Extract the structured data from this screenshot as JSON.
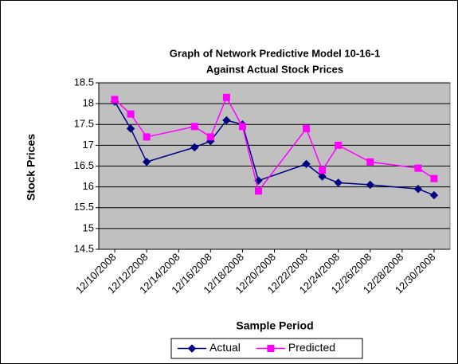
{
  "chart_data": {
    "type": "line",
    "title": [
      "Graph of Network Predictive Model 10-16-1",
      "Against Actual Stock Prices"
    ],
    "x_label": "Sample Period",
    "y_label": "Stock Prices",
    "x": [
      "12/10/2008",
      "12/11/2008",
      "12/12/2008",
      "12/15/2008",
      "12/16/2008",
      "12/17/2008",
      "12/18/2008",
      "12/19/2008",
      "12/22/2008",
      "12/23/2008",
      "12/24/2008",
      "12/26/2008",
      "12/29/2008",
      "12/30/2008"
    ],
    "series": [
      {
        "name": "Actual",
        "color": "#000080",
        "marker": "diamond",
        "values": [
          18.05,
          17.4,
          16.6,
          16.95,
          17.1,
          17.6,
          17.5,
          16.15,
          16.55,
          16.25,
          16.1,
          16.05,
          15.95,
          15.8
        ]
      },
      {
        "name": "Predicted",
        "color": "#ff00ff",
        "marker": "square",
        "values": [
          18.1,
          17.75,
          17.2,
          17.45,
          17.2,
          18.15,
          17.45,
          15.9,
          17.4,
          16.4,
          17.0,
          16.6,
          16.45,
          16.2
        ]
      }
    ],
    "xlim": [
      "12/9/2008",
      "12/31/2008"
    ],
    "xticks": [
      "12/10/2008",
      "12/12/2008",
      "12/14/2008",
      "12/16/2008",
      "12/18/2008",
      "12/20/2008",
      "12/22/2008",
      "12/24/2008",
      "12/26/2008",
      "12/28/2008",
      "12/30/2008"
    ],
    "ylim": [
      14.5,
      18.5
    ],
    "yticks": [
      14.5,
      15,
      15.5,
      16,
      16.5,
      17,
      17.5,
      18,
      18.5
    ],
    "grid": true,
    "legend": "bottom"
  }
}
